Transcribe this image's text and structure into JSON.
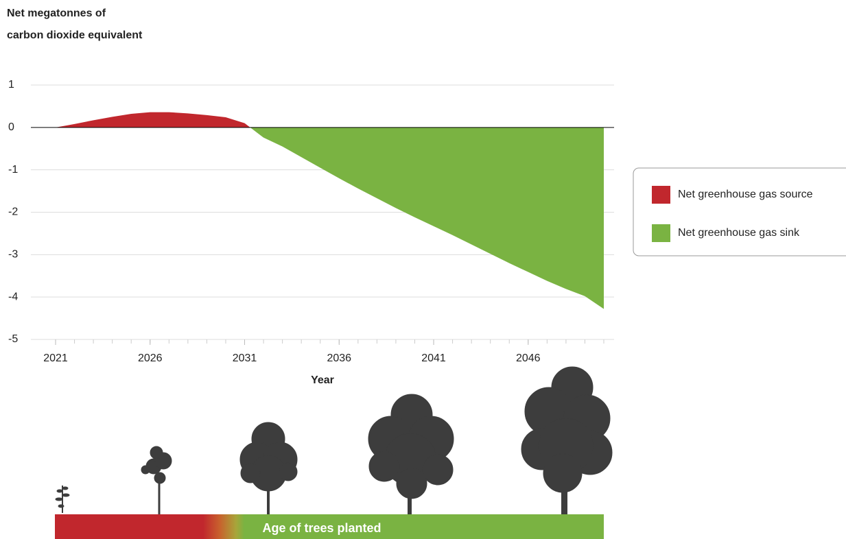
{
  "chart_data": {
    "type": "area",
    "y_label": [
      "Net megatonnes of",
      "carbon dioxide equivalent"
    ],
    "x_label": "Year",
    "x": [
      2021,
      2022,
      2023,
      2024,
      2025,
      2026,
      2027,
      2028,
      2029,
      2030,
      2031,
      2032,
      2033,
      2034,
      2035,
      2036,
      2037,
      2038,
      2039,
      2040,
      2041,
      2042,
      2043,
      2044,
      2045,
      2046,
      2047,
      2048,
      2049,
      2050
    ],
    "values": [
      0,
      0.08,
      0.17,
      0.25,
      0.32,
      0.36,
      0.36,
      0.33,
      0.29,
      0.24,
      0.1,
      -0.24,
      -0.45,
      -0.7,
      -0.95,
      -1.2,
      -1.44,
      -1.67,
      -1.9,
      -2.12,
      -2.33,
      -2.54,
      -2.76,
      -2.98,
      -3.2,
      -3.41,
      -3.62,
      -3.81,
      -3.98,
      -4.28
    ],
    "legend": [
      {
        "name": "Net greenhouse gas source",
        "color": "#c1272d"
      },
      {
        "name": "Net greenhouse gas sink",
        "color": "#7ab342"
      }
    ],
    "xlim": [
      2021,
      2050
    ],
    "xticks": [
      2021,
      2026,
      2031,
      2036,
      2041,
      2046
    ],
    "ylim": [
      -5,
      1
    ],
    "yticks": [
      -5,
      -4,
      -3,
      -2,
      -1,
      0,
      1
    ],
    "grid": true,
    "band_label": "Age of trees planted"
  }
}
